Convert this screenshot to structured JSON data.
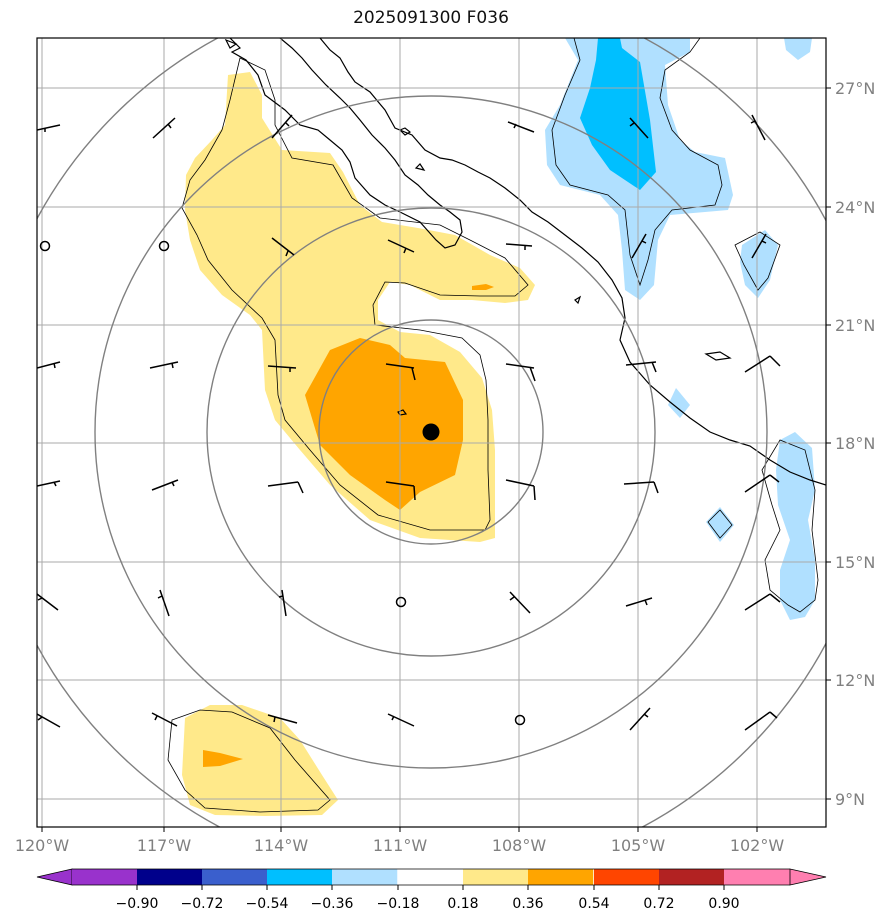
{
  "title": "2025091300 F036",
  "map": {
    "lat_labels": [
      "27°N",
      "24°N",
      "21°N",
      "18°N",
      "15°N",
      "12°N",
      "9°N"
    ],
    "lon_labels": [
      "120°W",
      "117°W",
      "114°W",
      "111°W",
      "108°W",
      "105°W",
      "102°W"
    ],
    "extent": {
      "lon_min": -120.0,
      "lon_max": -101.3,
      "lat_min": 8.3,
      "lat_max": 28.3
    },
    "storm_center": {
      "lon": -110.7,
      "lat": 18.3
    }
  },
  "colorbar": {
    "ticks": [
      "−0.90",
      "−0.72",
      "−0.54",
      "−0.36",
      "−0.18",
      "0.18",
      "0.36",
      "0.54",
      "0.72",
      "0.90"
    ],
    "colors": [
      "#9932cc",
      "#00008b",
      "#3a5fcd",
      "#00bfff",
      "#b0e0ff",
      "#ffffff",
      "#ffe98a",
      "#ffa500",
      "#ff4500",
      "#b22222",
      "#ff7fb0"
    ],
    "extend_low": "#9932cc",
    "extend_high": "#ff7fb0"
  },
  "colors": {
    "light_yellow": "#ffe98a",
    "orange": "#ffa500",
    "light_blue": "#b0e0ff",
    "deep_sky_blue": "#00bfff",
    "grid": "#aaaaaa",
    "range_rings": "#808080"
  }
}
